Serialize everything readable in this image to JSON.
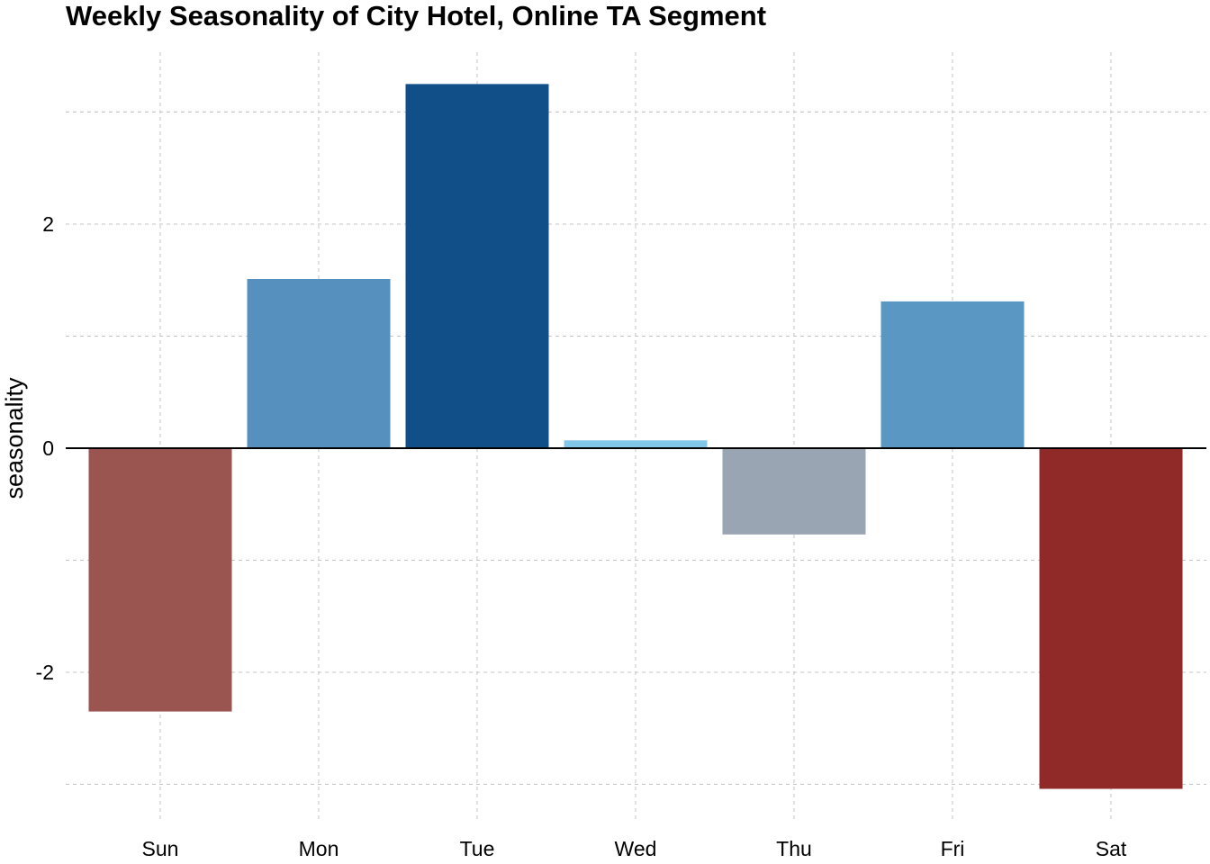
{
  "chart_data": {
    "type": "bar",
    "title": "Weekly Seasonality of City Hotel, Online TA Segment",
    "xlabel": "",
    "ylabel": "seasonality",
    "categories": [
      "Sun",
      "Mon",
      "Tue",
      "Wed",
      "Thu",
      "Fri",
      "Sat"
    ],
    "values": [
      -2.35,
      1.51,
      3.25,
      0.07,
      -0.77,
      1.31,
      -3.04
    ],
    "colors": [
      "#9b5551",
      "#5590bf",
      "#114f89",
      "#83c7e8",
      "#9aa5b3",
      "#5b97c3",
      "#8f2a28"
    ],
    "ylim": [
      -3.0,
      3.25
    ],
    "yticks": [
      -2,
      0,
      2
    ],
    "ytick_labels": [
      "-2",
      "0",
      "2"
    ],
    "grid": true,
    "legend": "none"
  }
}
